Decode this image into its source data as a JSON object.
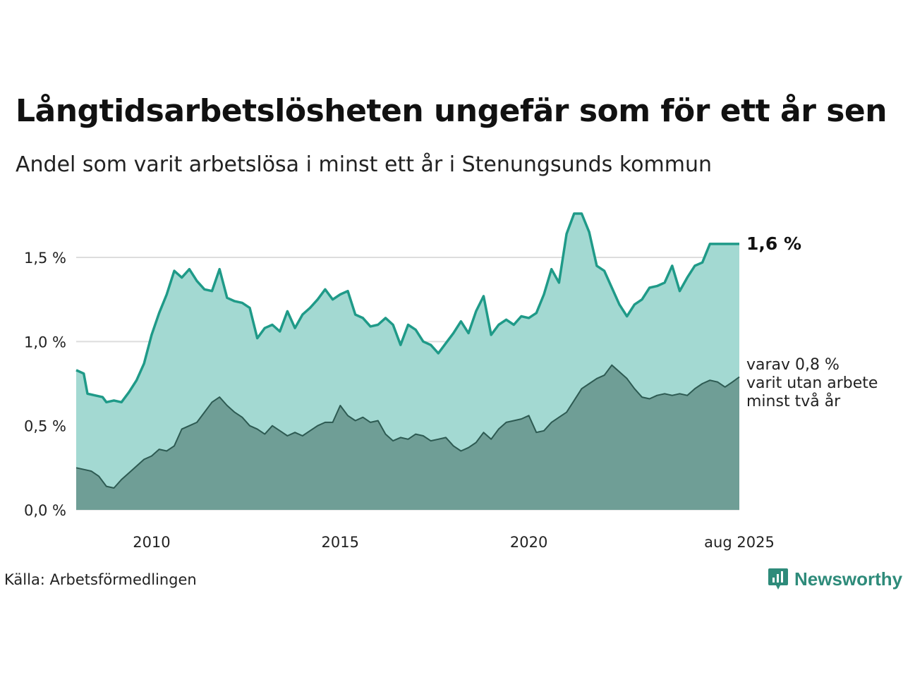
{
  "header": {
    "title": "Långtidsarbetslösheten ungefär som för ett år sen",
    "subtitle": "Andel som varit arbetslösa i minst ett år i Stenungsunds kommun"
  },
  "footer": {
    "source": "Källa: Arbetsförmedlingen",
    "brand": "Newsworthy"
  },
  "colors": {
    "total_line": "#1f9a88",
    "total_fill": "#a3d9d2",
    "sub_line": "#2d5a52",
    "sub_fill": "#6f9e96",
    "grid": "#dddddd",
    "brand": "#2e8b7a"
  },
  "chart_data": {
    "type": "area",
    "title": "Långtidsarbetslösheten ungefär som för ett år sen",
    "subtitle": "Andel som varit arbetslösa i minst ett år i Stenungsunds kommun",
    "xlabel": "",
    "ylabel": "",
    "xlim": [
      2008.0,
      2025.58
    ],
    "ylim": [
      0,
      1.8
    ],
    "yticks": [
      0,
      0.5,
      1.0,
      1.5
    ],
    "ytick_labels": [
      "0,0 %",
      "0,5 %",
      "1,0 %",
      "1,5 %"
    ],
    "xticks": [
      2010,
      2015,
      2020,
      2025.58
    ],
    "xtick_labels": [
      "2010",
      "2015",
      "2020",
      "aug 2025"
    ],
    "grid": true,
    "legend": "none",
    "annotations": [
      {
        "text": "1,6 %",
        "series": "total"
      },
      {
        "lines": [
          "varav 0,8 %",
          "varit utan arbete",
          "minst två år"
        ],
        "series": "two_years"
      }
    ],
    "series": [
      {
        "id": "total",
        "x": [
          2008.0,
          2008.2,
          2008.3,
          2008.5,
          2008.7,
          2008.8,
          2009.0,
          2009.2,
          2009.4,
          2009.6,
          2009.8,
          2010.0,
          2010.2,
          2010.4,
          2010.6,
          2010.8,
          2011.0,
          2011.2,
          2011.4,
          2011.6,
          2011.8,
          2012.0,
          2012.2,
          2012.4,
          2012.6,
          2012.8,
          2013.0,
          2013.2,
          2013.4,
          2013.6,
          2013.8,
          2014.0,
          2014.2,
          2014.4,
          2014.6,
          2014.8,
          2015.0,
          2015.2,
          2015.4,
          2015.6,
          2015.8,
          2016.0,
          2016.2,
          2016.4,
          2016.6,
          2016.8,
          2017.0,
          2017.2,
          2017.4,
          2017.6,
          2017.8,
          2018.0,
          2018.2,
          2018.4,
          2018.6,
          2018.8,
          2019.0,
          2019.2,
          2019.4,
          2019.6,
          2019.8,
          2020.0,
          2020.2,
          2020.4,
          2020.6,
          2020.8,
          2021.0,
          2021.2,
          2021.4,
          2021.6,
          2021.8,
          2022.0,
          2022.2,
          2022.4,
          2022.6,
          2022.8,
          2023.0,
          2023.2,
          2023.4,
          2023.6,
          2023.8,
          2024.0,
          2024.2,
          2024.4,
          2024.6,
          2024.8,
          2025.0,
          2025.2,
          2025.4,
          2025.58
        ],
        "values": [
          0.83,
          0.81,
          0.69,
          0.68,
          0.67,
          0.64,
          0.65,
          0.64,
          0.7,
          0.77,
          0.87,
          1.04,
          1.17,
          1.28,
          1.42,
          1.38,
          1.43,
          1.36,
          1.31,
          1.3,
          1.43,
          1.26,
          1.24,
          1.23,
          1.2,
          1.02,
          1.08,
          1.1,
          1.06,
          1.18,
          1.08,
          1.16,
          1.2,
          1.25,
          1.31,
          1.25,
          1.28,
          1.3,
          1.16,
          1.14,
          1.09,
          1.1,
          1.14,
          1.1,
          0.98,
          1.1,
          1.07,
          1.0,
          0.98,
          0.93,
          0.99,
          1.05,
          1.12,
          1.05,
          1.18,
          1.27,
          1.04,
          1.1,
          1.13,
          1.1,
          1.15,
          1.14,
          1.17,
          1.28,
          1.43,
          1.35,
          1.64,
          1.76,
          1.76,
          1.65,
          1.45,
          1.42,
          1.32,
          1.22,
          1.15,
          1.22,
          1.25,
          1.32,
          1.33,
          1.35,
          1.45,
          1.3,
          1.38,
          1.45,
          1.47,
          1.58,
          1.58,
          1.58,
          1.58,
          1.58
        ]
      },
      {
        "id": "two_years",
        "x": [
          2008.0,
          2008.2,
          2008.4,
          2008.6,
          2008.8,
          2009.0,
          2009.2,
          2009.4,
          2009.6,
          2009.8,
          2010.0,
          2010.2,
          2010.4,
          2010.6,
          2010.8,
          2011.0,
          2011.2,
          2011.4,
          2011.6,
          2011.8,
          2012.0,
          2012.2,
          2012.4,
          2012.6,
          2012.8,
          2013.0,
          2013.2,
          2013.4,
          2013.6,
          2013.8,
          2014.0,
          2014.2,
          2014.4,
          2014.6,
          2014.8,
          2015.0,
          2015.2,
          2015.4,
          2015.6,
          2015.8,
          2016.0,
          2016.2,
          2016.4,
          2016.6,
          2016.8,
          2017.0,
          2017.2,
          2017.4,
          2017.6,
          2017.8,
          2018.0,
          2018.2,
          2018.4,
          2018.6,
          2018.8,
          2019.0,
          2019.2,
          2019.4,
          2019.6,
          2019.8,
          2020.0,
          2020.2,
          2020.4,
          2020.6,
          2020.8,
          2021.0,
          2021.2,
          2021.4,
          2021.6,
          2021.8,
          2022.0,
          2022.2,
          2022.4,
          2022.6,
          2022.8,
          2023.0,
          2023.2,
          2023.4,
          2023.6,
          2023.8,
          2024.0,
          2024.2,
          2024.4,
          2024.6,
          2024.8,
          2025.0,
          2025.2,
          2025.4,
          2025.58
        ],
        "values": [
          0.25,
          0.24,
          0.23,
          0.2,
          0.14,
          0.13,
          0.18,
          0.22,
          0.26,
          0.3,
          0.32,
          0.36,
          0.35,
          0.38,
          0.48,
          0.5,
          0.52,
          0.58,
          0.64,
          0.67,
          0.62,
          0.58,
          0.55,
          0.5,
          0.48,
          0.45,
          0.5,
          0.47,
          0.44,
          0.46,
          0.44,
          0.47,
          0.5,
          0.52,
          0.52,
          0.62,
          0.56,
          0.53,
          0.55,
          0.52,
          0.53,
          0.45,
          0.41,
          0.43,
          0.42,
          0.45,
          0.44,
          0.41,
          0.42,
          0.43,
          0.38,
          0.35,
          0.37,
          0.4,
          0.46,
          0.42,
          0.48,
          0.52,
          0.53,
          0.54,
          0.56,
          0.46,
          0.47,
          0.52,
          0.55,
          0.58,
          0.65,
          0.72,
          0.75,
          0.78,
          0.8,
          0.86,
          0.82,
          0.78,
          0.72,
          0.67,
          0.66,
          0.68,
          0.69,
          0.68,
          0.69,
          0.68,
          0.72,
          0.75,
          0.77,
          0.76,
          0.73,
          0.76,
          0.79
        ]
      }
    ]
  }
}
